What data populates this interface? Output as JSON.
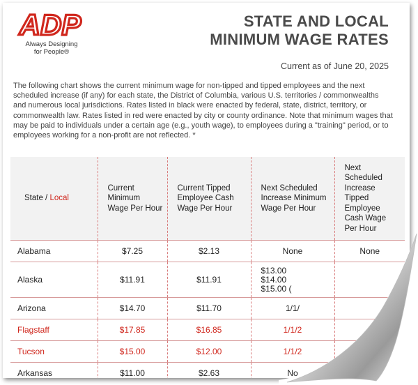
{
  "logo": {
    "text": "ADP",
    "tagline_1": "Always Designing",
    "tagline_2": "for People®"
  },
  "header": {
    "title_line1": "STATE AND LOCAL",
    "title_line2": "MINIMUM WAGE RATES",
    "current_as_of": "Current as of June 20, 2025"
  },
  "intro": {
    "part1": "The following chart shows the current minimum wage for non-tipped and tipped employees and the next scheduled increase (if any) for each state, the District of Columbia, various U.S. territories / commonwealths and numerous local jurisdictions.  Rates listed in black were enacted by federal, state, district, territory, or commonwealth law. Rates listed in red were enacted by city or county ordinance.  Note that minimum wages that may be paid to individuals under a certain age (e.g., youth wage), to employees during a \"training\" period, or to employees working for a non-profit are not reflected. *"
  },
  "table": {
    "headers": {
      "state": "State",
      "slash": " / ",
      "local": "Local",
      "current_min": "Current Minimum Wage Per Hour",
      "current_tipped": "Current Tipped Employee Cash Wage Per Hour",
      "next_increase": "Next Scheduled Increase Minimum Wage Per Hour",
      "next_tipped": "Next Scheduled Increase Tipped Employee Cash Wage Per Hour"
    },
    "rows": [
      {
        "state": "Alabama",
        "min": "$7.25",
        "tipped": "$2.13",
        "next_min": "None",
        "next_tipped": "None"
      },
      {
        "state": "Alaska",
        "min": "$11.91",
        "tipped": "$11.91",
        "next_min_lines": [
          "$13.00",
          "$14.00",
          "$15.00 ("
        ],
        "next_tipped": ""
      },
      {
        "state": "Arizona",
        "min": "$14.70",
        "tipped": "$11.70",
        "next_min": "1/1/",
        "next_tipped": ""
      },
      {
        "state": "Flagstaff",
        "min": "$17.85",
        "tipped": "$16.85",
        "next_min": "1/1/2",
        "next_tipped": ""
      },
      {
        "state": "Tucson",
        "min": "$15.00",
        "tipped": "$12.00",
        "next_min": "1/1/2",
        "next_tipped": ""
      },
      {
        "state": "Arkansas",
        "min": "$11.00",
        "tipped": "$2.63",
        "next_min": "No",
        "next_tipped": ""
      }
    ]
  },
  "colors": {
    "brand_red": "#d0271d",
    "title_gray": "#4a4a4a",
    "header_bg": "#f2f2f2"
  }
}
